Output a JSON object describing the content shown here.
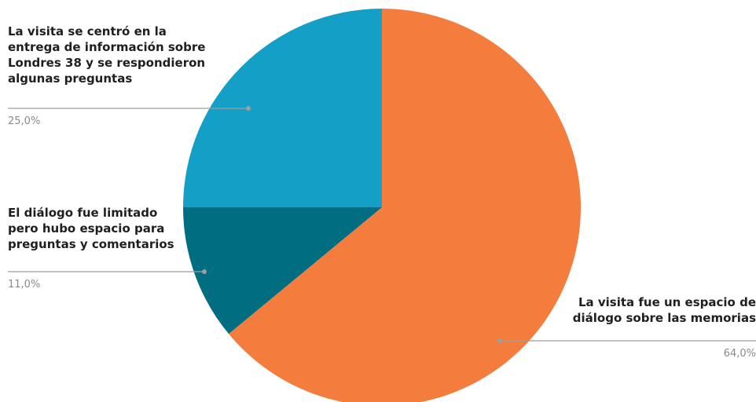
{
  "chart_data": {
    "type": "pie",
    "slices": [
      {
        "label_lines": [
          "La visita fue un espacio de",
          "diálogo sobre las memorias"
        ],
        "value": 64.0,
        "value_label": "64,0%",
        "color": "#F47C3C"
      },
      {
        "label_lines": [
          "El diálogo fue limitado",
          "pero hubo espacio para",
          "preguntas y comentarios"
        ],
        "value": 11.0,
        "value_label": "11,0%",
        "color": "#016D80"
      },
      {
        "label_lines": [
          "La visita se centró en la",
          "entrega de información sobre",
          "Londres 38 y se respondieron",
          "algunas preguntas"
        ],
        "value": 25.0,
        "value_label": "25,0%",
        "color": "#139FC6"
      }
    ],
    "start_angle_deg": 0,
    "direction": "clockwise"
  }
}
